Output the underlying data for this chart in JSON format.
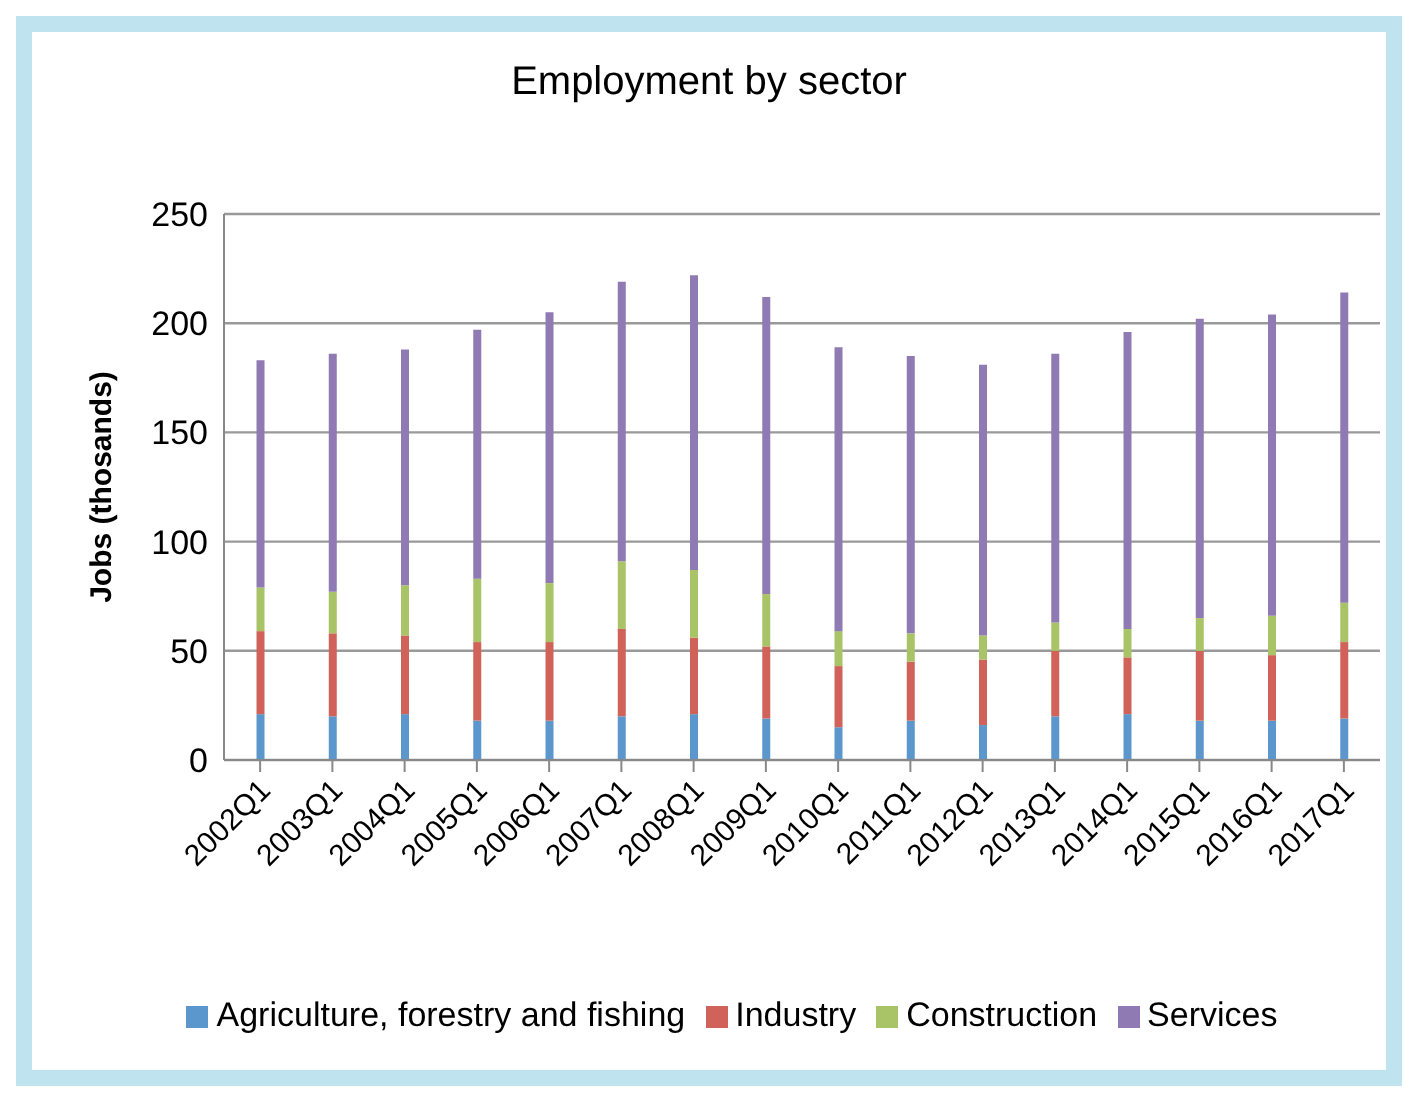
{
  "chart_data": {
    "type": "bar",
    "title": "Employment by sector",
    "ylabel": "Jobs (thosands)",
    "stacked": true,
    "categories": [
      "2002Q1",
      "2003Q1",
      "2004Q1",
      "2005Q1",
      "2006Q1",
      "2007Q1",
      "2008Q1",
      "2009Q1",
      "2010Q1",
      "2011Q1",
      "2012Q1",
      "2013Q1",
      "2014Q1",
      "2015Q1",
      "2016Q1",
      "2017Q1"
    ],
    "series": [
      {
        "name": "Agriculture, forestry and fishing",
        "color": "#5b97cc",
        "values": [
          21,
          20,
          21,
          18,
          18,
          20,
          21,
          19,
          15,
          18,
          16,
          20,
          21,
          18,
          18,
          19
        ]
      },
      {
        "name": "Industry",
        "color": "#d0625a",
        "values": [
          38,
          38,
          36,
          36,
          36,
          40,
          35,
          33,
          28,
          27,
          30,
          30,
          26,
          32,
          30,
          35
        ]
      },
      {
        "name": "Construction",
        "color": "#a8c466",
        "values": [
          20,
          19,
          23,
          29,
          27,
          31,
          31,
          24,
          16,
          13,
          11,
          13,
          13,
          15,
          18,
          18
        ]
      },
      {
        "name": "Services",
        "color": "#8f7ab3",
        "values": [
          104,
          109,
          108,
          114,
          124,
          128,
          135,
          136,
          130,
          127,
          124,
          123,
          136,
          137,
          138,
          142
        ]
      }
    ],
    "ylim": [
      0,
      250
    ],
    "yticks": [
      0,
      50,
      100,
      150,
      200,
      250
    ],
    "grid": "y",
    "legend": "bottom"
  }
}
